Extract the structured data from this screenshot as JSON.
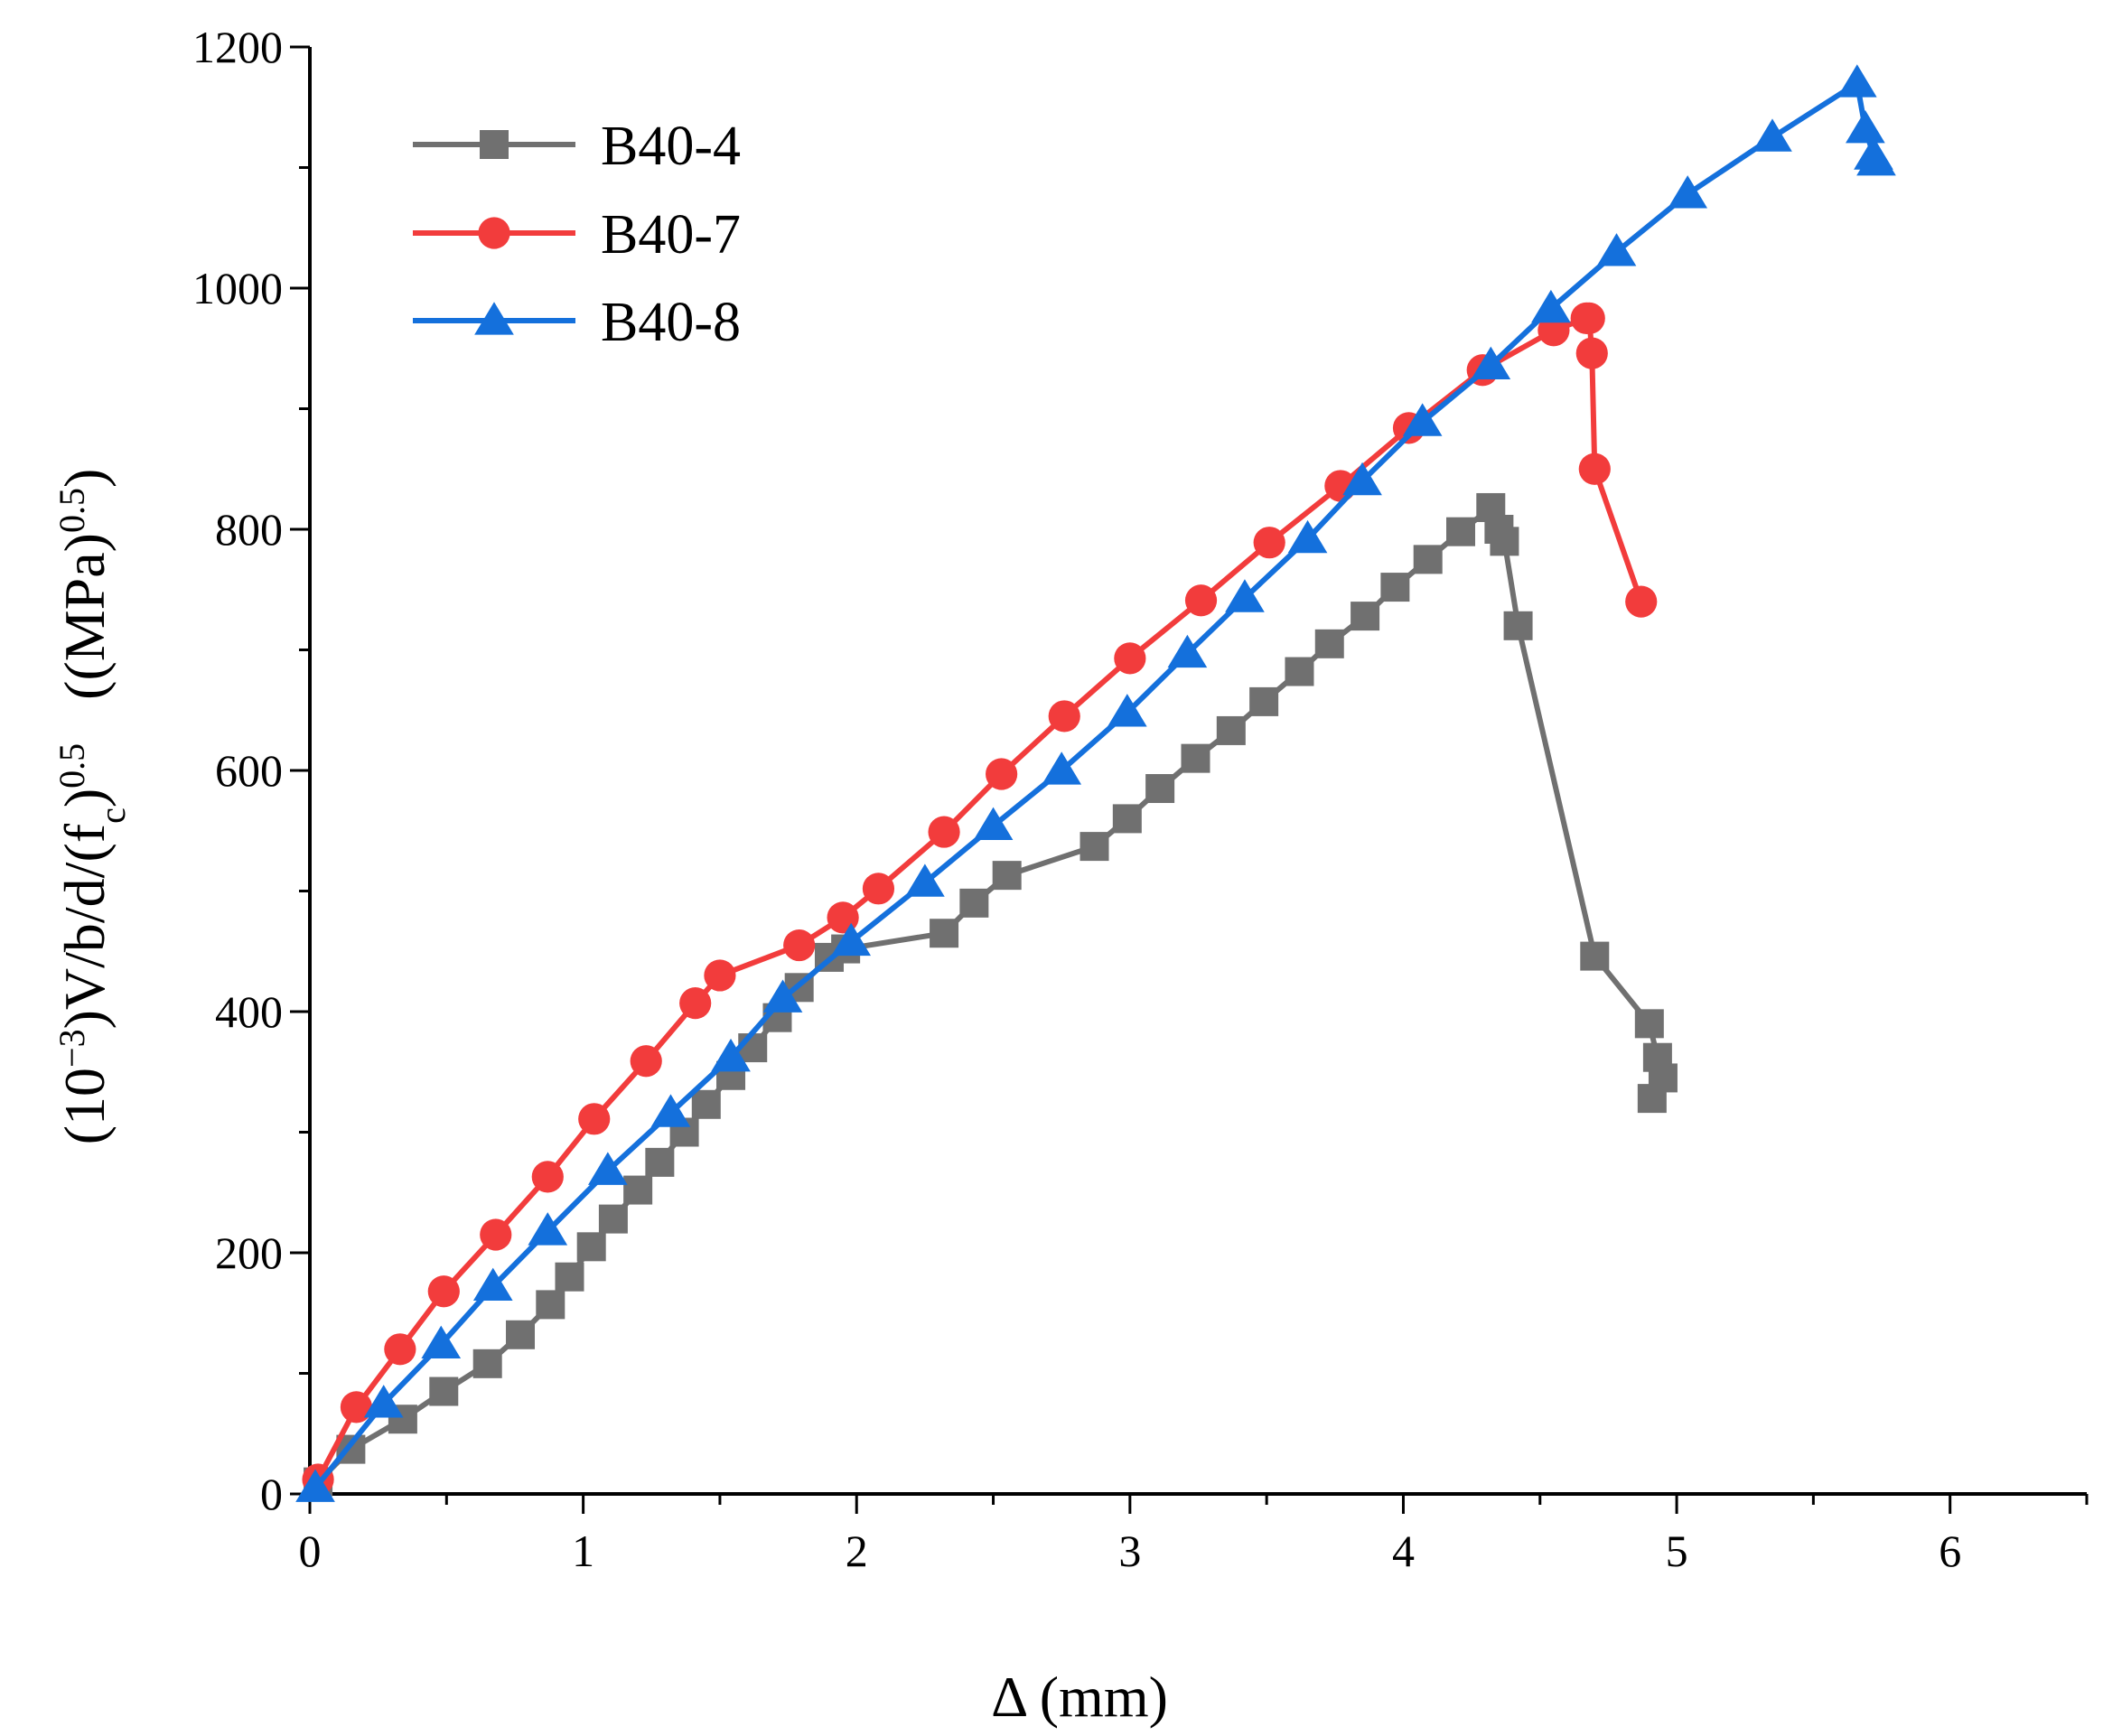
{
  "chart_data": {
    "type": "line",
    "title": "",
    "xlabel": "Δ (mm)",
    "ylabel": {
      "part1": "(10",
      "sup1": "−3",
      "part2": ")V/b/d/(f",
      "sub1": "c",
      "part3": ")",
      "sup2": "0.5",
      "part4": "   ((MPa)",
      "sup3": "0.5",
      "part5": ")"
    },
    "xlim": [
      0,
      6.5
    ],
    "ylim": [
      0,
      1200
    ],
    "xticks": [
      "0",
      "1",
      "2",
      "3",
      "4",
      "5",
      "6"
    ],
    "yticks": [
      "0",
      "200",
      "400",
      "600",
      "800",
      "1000",
      "1200"
    ],
    "grid": false,
    "legend_position": "top-left",
    "series": [
      {
        "name": "B40-4",
        "color": "#707070",
        "marker": "square",
        "x": [
          0.03,
          0.15,
          0.34,
          0.49,
          0.65,
          0.77,
          0.88,
          0.95,
          1.03,
          1.11,
          1.2,
          1.28,
          1.37,
          1.45,
          1.54,
          1.62,
          1.71,
          1.79,
          1.9,
          1.96,
          2.32,
          2.43,
          2.55,
          2.87,
          2.99,
          3.11,
          3.24,
          3.37,
          3.49,
          3.62,
          3.73,
          3.86,
          3.97,
          4.09,
          4.21,
          4.32,
          4.35,
          4.37,
          4.42,
          4.7,
          4.9,
          4.93,
          4.95,
          4.91
        ],
        "y": [
          10,
          37,
          62,
          85,
          108,
          132,
          157,
          180,
          205,
          228,
          252,
          275,
          300,
          323,
          347,
          370,
          395,
          420,
          445,
          452,
          465,
          490,
          513,
          537,
          560,
          585,
          610,
          633,
          657,
          682,
          705,
          728,
          752,
          775,
          798,
          818,
          800,
          790,
          720,
          446,
          390,
          362,
          345,
          328
        ]
      },
      {
        "name": "B40-7",
        "color": "#f23c3c",
        "marker": "circle",
        "x": [
          0.03,
          0.17,
          0.33,
          0.49,
          0.68,
          0.87,
          1.04,
          1.23,
          1.41,
          1.5,
          1.79,
          1.95,
          2.08,
          2.32,
          2.53,
          2.76,
          3.0,
          3.26,
          3.51,
          3.77,
          4.02,
          4.29,
          4.55,
          4.67,
          4.68,
          4.69,
          4.7,
          4.87
        ],
        "y": [
          12,
          72,
          120,
          168,
          215,
          263,
          311,
          359,
          407,
          430,
          455,
          478,
          502,
          549,
          597,
          645,
          693,
          741,
          789,
          836,
          884,
          932,
          965,
          975,
          975,
          946,
          850,
          740
        ]
      },
      {
        "name": "B40-8",
        "color": "#1470dc",
        "marker": "triangle",
        "x": [
          0.02,
          0.27,
          0.48,
          0.67,
          0.87,
          1.09,
          1.32,
          1.54,
          1.73,
          1.98,
          2.25,
          2.5,
          2.75,
          2.99,
          3.21,
          3.42,
          3.65,
          3.85,
          4.07,
          4.32,
          4.54,
          4.78,
          5.04,
          5.35,
          5.66,
          5.69,
          5.72,
          5.73
        ],
        "y": [
          5,
          75,
          124,
          172,
          218,
          268,
          316,
          362,
          411,
          458,
          507,
          554,
          600,
          648,
          697,
          743,
          792,
          840,
          889,
          936,
          983,
          1030,
          1078,
          1125,
          1170,
          1132,
          1110,
          1105
        ]
      }
    ]
  }
}
